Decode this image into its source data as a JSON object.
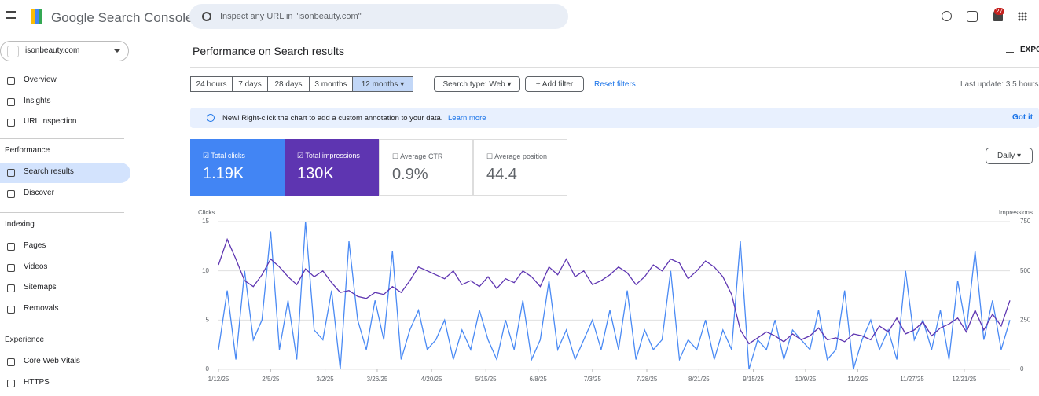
{
  "header": {
    "product": "Google Search Console",
    "search_placeholder": "Inspect any URL in \"isonbeauty.com\"",
    "notifications": "27"
  },
  "sidebar": {
    "property": "isonbeauty.com",
    "top_items": [
      "Overview",
      "Insights",
      "URL inspection"
    ],
    "sections": [
      {
        "title": "Performance",
        "items": [
          "Search results",
          "Discover"
        ]
      },
      {
        "title": "Indexing",
        "items": [
          "Pages",
          "Videos",
          "Sitemaps",
          "Removals"
        ]
      },
      {
        "title": "Experience",
        "items": [
          "Core Web Vitals",
          "HTTPS"
        ]
      }
    ]
  },
  "page": {
    "title": "Performance on Search results",
    "export": "EXPO",
    "date_ranges": [
      "24 hours",
      "7 days",
      "28 days",
      "3 months",
      "12 months"
    ],
    "search_type": "Search type: Web",
    "add_filter": "Add filter",
    "reset": "Reset filters",
    "last_update": "Last update: 3.5 hours",
    "banner": "New! Right-click the chart to add a custom annotation to your data.",
    "learn_more": "Learn more",
    "got_it": "Got it",
    "granularity": "Daily"
  },
  "metrics": [
    {
      "value": "1.19K"
    },
    {
      "value": "130K"
    },
    {
      "label": "Average CTR",
      "value": "0.9%"
    },
    {
      "label": "Average position",
      "value": "44.4"
    }
  ],
  "chart_data": {
    "type": "line",
    "ylabel": "Clicks",
    "y2label": "Impressions",
    "x": [
      0,
      4,
      8,
      12,
      16,
      20,
      24,
      28,
      32,
      36,
      40,
      44,
      48,
      52,
      56,
      60,
      64,
      68,
      72,
      76,
      80,
      84,
      88,
      92,
      96,
      100,
      104,
      108,
      112,
      116,
      120,
      124,
      128,
      132,
      136,
      140,
      144,
      148,
      152,
      156,
      160,
      164,
      168,
      172,
      176,
      180,
      184,
      188,
      192,
      196,
      200,
      204,
      208,
      212,
      216,
      220,
      224,
      228,
      232,
      236,
      240,
      244,
      248,
      252,
      256,
      260,
      264,
      268,
      272,
      276,
      280,
      284,
      288,
      292,
      296,
      300,
      304,
      308,
      312,
      316,
      320,
      324,
      328,
      332,
      336,
      340,
      344,
      348,
      352,
      356,
      360,
      364
    ],
    "xlim": [
      0,
      364
    ],
    "xticks": [
      {
        "value": 0,
        "label": "1/12/25"
      },
      {
        "value": 24,
        "label": "2/5/25"
      },
      {
        "value": 49,
        "label": "3/2/25"
      },
      {
        "value": 73,
        "label": "3/26/25"
      },
      {
        "value": 98,
        "label": "4/20/25"
      },
      {
        "value": 123,
        "label": "5/15/25"
      },
      {
        "value": 147,
        "label": "6/8/25"
      },
      {
        "value": 172,
        "label": "7/3/25"
      },
      {
        "value": 197,
        "label": "7/28/25"
      },
      {
        "value": 221,
        "label": "8/21/25"
      },
      {
        "value": 246,
        "label": "9/15/25"
      },
      {
        "value": 270,
        "label": "10/9/25"
      },
      {
        "value": 294,
        "label": "11/2/25"
      },
      {
        "value": 319,
        "label": "11/27/25"
      },
      {
        "value": 343,
        "label": "12/21/25"
      }
    ],
    "ylim": [
      0,
      15
    ],
    "yticks": [
      0,
      5,
      10,
      15
    ],
    "y2lim": [
      0,
      750
    ],
    "y2ticks": [
      0,
      250,
      500,
      750
    ],
    "grid": true,
    "series": [
      {
        "name": "Total clicks",
        "color": "#4a8af4",
        "values": [
          2,
          8,
          1,
          10,
          3,
          5,
          14,
          2,
          7,
          1,
          15,
          4,
          3,
          8,
          0,
          13,
          5,
          2,
          7,
          3,
          12,
          1,
          4,
          6,
          2,
          3,
          5,
          1,
          4,
          2,
          6,
          3,
          1,
          5,
          2,
          7,
          1,
          3,
          9,
          2,
          4,
          1,
          3,
          5,
          2,
          6,
          2,
          8,
          1,
          4,
          2,
          3,
          10,
          1,
          3,
          2,
          5,
          1,
          4,
          2,
          13,
          0,
          3,
          2,
          5,
          1,
          4,
          3,
          2,
          6,
          1,
          2,
          8,
          0,
          3,
          5,
          2,
          4,
          1,
          10,
          3,
          5,
          2,
          6,
          1,
          9,
          4,
          12,
          3,
          7,
          2,
          5
        ]
      },
      {
        "name": "Total impressions",
        "color": "#5e35b1",
        "axis": "y2",
        "values": [
          530,
          660,
          560,
          450,
          420,
          480,
          560,
          520,
          470,
          430,
          510,
          470,
          500,
          440,
          390,
          400,
          370,
          360,
          390,
          380,
          420,
          390,
          450,
          520,
          500,
          480,
          460,
          500,
          430,
          450,
          420,
          470,
          410,
          460,
          440,
          500,
          470,
          420,
          520,
          480,
          560,
          470,
          500,
          430,
          450,
          480,
          520,
          490,
          430,
          470,
          530,
          500,
          560,
          540,
          460,
          500,
          550,
          520,
          470,
          380,
          200,
          130,
          160,
          190,
          170,
          140,
          180,
          150,
          170,
          210,
          150,
          160,
          140,
          180,
          170,
          150,
          220,
          190,
          260,
          180,
          200,
          240,
          170,
          210,
          230,
          260,
          190,
          300,
          200,
          280,
          220,
          350
        ]
      }
    ]
  }
}
